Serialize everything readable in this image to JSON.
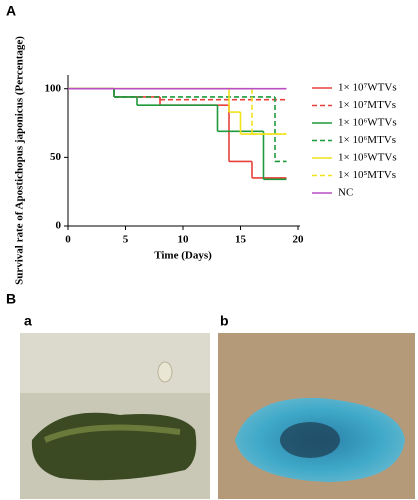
{
  "panels": {
    "a_main": "A",
    "b_main": "B",
    "b_left": "a",
    "b_right": "b"
  },
  "chart_data": {
    "type": "step",
    "xlabel": "Time (Days)",
    "ylabel": "Survival rate of Apostichopus japonicus (Percentage)",
    "xlim": [
      0,
      20
    ],
    "xticks": [
      0,
      5,
      10,
      15,
      20
    ],
    "ylim": [
      0,
      110
    ],
    "yticks": [
      0,
      50,
      100
    ],
    "series": [
      {
        "name": "1× 10⁷WTVs",
        "color": "#e8413c",
        "dash": false,
        "x": [
          0,
          4,
          8,
          14,
          16,
          19
        ],
        "values": [
          100,
          94,
          88,
          47,
          35,
          35
        ]
      },
      {
        "name": "1× 10⁷MTVs",
        "color": "#e8413c",
        "dash": true,
        "x": [
          0,
          4,
          8,
          19
        ],
        "values": [
          100,
          94,
          92,
          92
        ]
      },
      {
        "name": "1× 10⁶WTVs",
        "color": "#1e9a3c",
        "dash": false,
        "x": [
          0,
          4,
          6,
          13,
          17,
          19
        ],
        "values": [
          100,
          94,
          88,
          69,
          34,
          34
        ]
      },
      {
        "name": "1× 10⁶MTVs",
        "color": "#1e9a3c",
        "dash": true,
        "x": [
          0,
          4,
          18,
          19
        ],
        "values": [
          100,
          94,
          47,
          47
        ]
      },
      {
        "name": "1× 10⁵WTVs",
        "color": "#f2e21a",
        "dash": false,
        "x": [
          0,
          14,
          15,
          19
        ],
        "values": [
          100,
          83,
          67,
          67
        ]
      },
      {
        "name": "1× 10⁵MTVs",
        "color": "#f2e21a",
        "dash": true,
        "x": [
          0,
          16,
          19
        ],
        "values": [
          100,
          67,
          67
        ]
      },
      {
        "name": "NC",
        "color": "#b94fc2",
        "dash": false,
        "x": [
          0,
          19
        ],
        "values": [
          100,
          100
        ]
      }
    ]
  }
}
